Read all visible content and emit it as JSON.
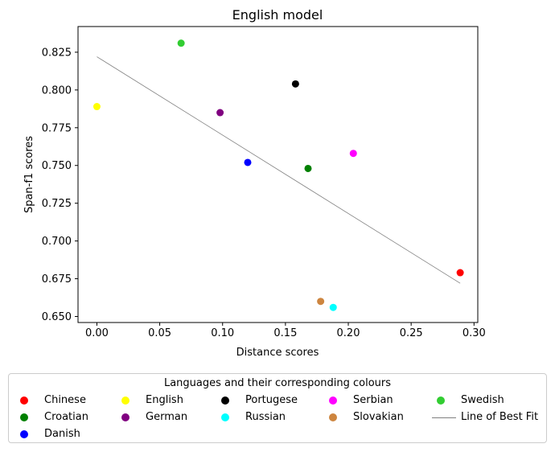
{
  "chart_data": {
    "type": "scatter",
    "title": "English model",
    "xlabel": "Distance scores",
    "ylabel": "Span-f1 scores",
    "xlim": [
      -0.015,
      0.303
    ],
    "ylim": [
      0.646,
      0.842
    ],
    "xticks": [
      "0.00",
      "0.05",
      "0.10",
      "0.15",
      "0.20",
      "0.25",
      "0.30"
    ],
    "xtick_values": [
      0.0,
      0.05,
      0.1,
      0.15,
      0.2,
      0.25,
      0.3
    ],
    "yticks": [
      "0.650",
      "0.675",
      "0.700",
      "0.725",
      "0.750",
      "0.775",
      "0.800",
      "0.825"
    ],
    "ytick_values": [
      0.65,
      0.675,
      0.7,
      0.725,
      0.75,
      0.775,
      0.8,
      0.825
    ],
    "grid": false,
    "points": [
      {
        "name": "Chinese",
        "x": 0.289,
        "y": 0.679,
        "color": "#ff0000"
      },
      {
        "name": "English",
        "x": 0.0,
        "y": 0.789,
        "color": "#ffff00"
      },
      {
        "name": "Portugese",
        "x": 0.158,
        "y": 0.804,
        "color": "#000000"
      },
      {
        "name": "Serbian",
        "x": 0.204,
        "y": 0.758,
        "color": "#ff00ff"
      },
      {
        "name": "Swedish",
        "x": 0.067,
        "y": 0.831,
        "color": "#32cd32"
      },
      {
        "name": "Croatian",
        "x": 0.168,
        "y": 0.748,
        "color": "#008000"
      },
      {
        "name": "German",
        "x": 0.098,
        "y": 0.785,
        "color": "#800080"
      },
      {
        "name": "Russian",
        "x": 0.188,
        "y": 0.656,
        "color": "#00ffff"
      },
      {
        "name": "Slovakian",
        "x": 0.178,
        "y": 0.66,
        "color": "#cd853f"
      },
      {
        "name": "Danish",
        "x": 0.12,
        "y": 0.752,
        "color": "#0000ff"
      }
    ],
    "best_fit": {
      "name": "Line of Best Fit",
      "x": [
        0.0,
        0.289
      ],
      "y": [
        0.822,
        0.672
      ],
      "color": "#808080"
    },
    "legend": {
      "title": "Languages and their corresponding colours",
      "placement": "bottom",
      "columns": 5,
      "entries": [
        {
          "label": "Chinese",
          "color": "#ff0000",
          "kind": "marker"
        },
        {
          "label": "English",
          "color": "#ffff00",
          "kind": "marker"
        },
        {
          "label": "Portugese",
          "color": "#000000",
          "kind": "marker"
        },
        {
          "label": "Serbian",
          "color": "#ff00ff",
          "kind": "marker"
        },
        {
          "label": "Swedish",
          "color": "#32cd32",
          "kind": "marker"
        },
        {
          "label": "Croatian",
          "color": "#008000",
          "kind": "marker"
        },
        {
          "label": "German",
          "color": "#800080",
          "kind": "marker"
        },
        {
          "label": "Russian",
          "color": "#00ffff",
          "kind": "marker"
        },
        {
          "label": "Slovakian",
          "color": "#cd853f",
          "kind": "marker"
        },
        {
          "label": "Line of Best Fit",
          "color": "#808080",
          "kind": "line"
        },
        {
          "label": "Danish",
          "color": "#0000ff",
          "kind": "marker"
        }
      ]
    }
  }
}
